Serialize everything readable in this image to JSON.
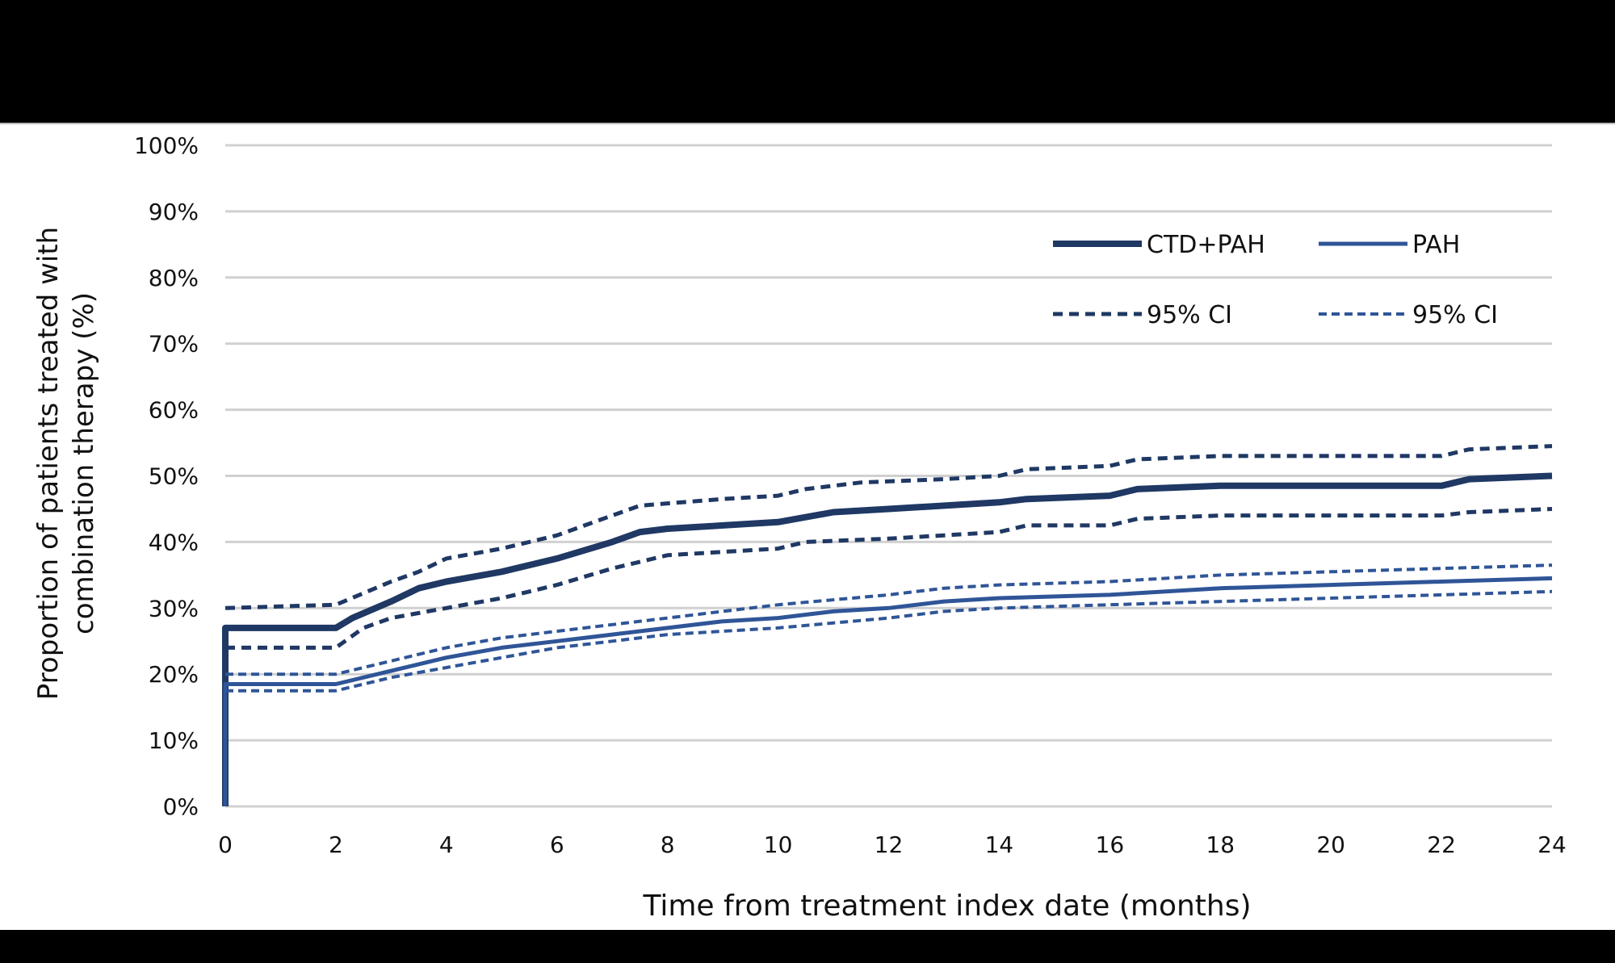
{
  "chart_data": {
    "type": "line",
    "title": "",
    "xlabel": "Time from treatment index date (months)",
    "ylabel": [
      "Proportion of patients treated with",
      "combination therapy (%)"
    ],
    "xlim": [
      0,
      24
    ],
    "ylim": [
      0,
      100
    ],
    "xticks": [
      0,
      2,
      4,
      6,
      8,
      10,
      12,
      14,
      16,
      18,
      20,
      22,
      24
    ],
    "yticks": [
      0,
      10,
      20,
      30,
      40,
      50,
      60,
      70,
      80,
      90,
      100
    ],
    "ytick_format": "%",
    "grid": "horizontal",
    "legend_placement": "top-right",
    "series": [
      {
        "name": "CTD+PAH",
        "color": "#1f3864",
        "style": "solid",
        "width": "thick",
        "points": [
          [
            0,
            0
          ],
          [
            0,
            27
          ],
          [
            2,
            27
          ],
          [
            2.3,
            28.5
          ],
          [
            3,
            31
          ],
          [
            3.5,
            33
          ],
          [
            4,
            34
          ],
          [
            5,
            35.5
          ],
          [
            6,
            37.5
          ],
          [
            7,
            40
          ],
          [
            7.5,
            41.5
          ],
          [
            8,
            42
          ],
          [
            10,
            43
          ],
          [
            11,
            44.5
          ],
          [
            12,
            45
          ],
          [
            14,
            46
          ],
          [
            14.5,
            46.5
          ],
          [
            16,
            47
          ],
          [
            16.5,
            48
          ],
          [
            18,
            48.5
          ],
          [
            22,
            48.5
          ],
          [
            22.5,
            49.5
          ],
          [
            24,
            50
          ]
        ]
      },
      {
        "name": "95% CI",
        "color": "#1f3864",
        "style": "dashed",
        "width": "medium",
        "points": [
          [
            0,
            30
          ],
          [
            2,
            30.5
          ],
          [
            3,
            34
          ],
          [
            3.5,
            35.5
          ],
          [
            4,
            37.5
          ],
          [
            5,
            39
          ],
          [
            6,
            41
          ],
          [
            7,
            44
          ],
          [
            7.5,
            45.5
          ],
          [
            9,
            46.5
          ],
          [
            10,
            47
          ],
          [
            10.5,
            48
          ],
          [
            11.5,
            49
          ],
          [
            13,
            49.5
          ],
          [
            14,
            50
          ],
          [
            14.5,
            51
          ],
          [
            16,
            51.5
          ],
          [
            16.5,
            52.5
          ],
          [
            18,
            53
          ],
          [
            22,
            53
          ],
          [
            22.5,
            54
          ],
          [
            24,
            54.5
          ]
        ]
      },
      {
        "name": "",
        "color": "#1f3864",
        "style": "dashed",
        "width": "medium",
        "points": [
          [
            0,
            24
          ],
          [
            2,
            24
          ],
          [
            2.5,
            27
          ],
          [
            3,
            28.5
          ],
          [
            4,
            30
          ],
          [
            5,
            31.5
          ],
          [
            6,
            33.5
          ],
          [
            7,
            36
          ],
          [
            8,
            38
          ],
          [
            10,
            39
          ],
          [
            10.5,
            40
          ],
          [
            12,
            40.5
          ],
          [
            13,
            41
          ],
          [
            14,
            41.5
          ],
          [
            14.5,
            42.5
          ],
          [
            16,
            42.5
          ],
          [
            16.5,
            43.5
          ],
          [
            18,
            44
          ],
          [
            22,
            44
          ],
          [
            22.5,
            44.5
          ],
          [
            24,
            45
          ]
        ]
      },
      {
        "name": "PAH",
        "color": "#2f5597",
        "style": "solid",
        "width": "medium",
        "points": [
          [
            0,
            0
          ],
          [
            0,
            18.5
          ],
          [
            2,
            18.5
          ],
          [
            3,
            20.5
          ],
          [
            4,
            22.5
          ],
          [
            5,
            24
          ],
          [
            6,
            25
          ],
          [
            7,
            26
          ],
          [
            8,
            27
          ],
          [
            9,
            28
          ],
          [
            10,
            28.5
          ],
          [
            11,
            29.5
          ],
          [
            12,
            30
          ],
          [
            13,
            31
          ],
          [
            14,
            31.5
          ],
          [
            16,
            32
          ],
          [
            18,
            33
          ],
          [
            20,
            33.5
          ],
          [
            22,
            34
          ],
          [
            24,
            34.5
          ]
        ]
      },
      {
        "name": "95% CI",
        "color": "#2f5597",
        "style": "dashed",
        "width": "thin",
        "points": [
          [
            0,
            20
          ],
          [
            2,
            20
          ],
          [
            3,
            22
          ],
          [
            4,
            24
          ],
          [
            5,
            25.5
          ],
          [
            6,
            26.5
          ],
          [
            7,
            27.5
          ],
          [
            8,
            28.5
          ],
          [
            10,
            30.5
          ],
          [
            12,
            32
          ],
          [
            13,
            33
          ],
          [
            14,
            33.5
          ],
          [
            16,
            34
          ],
          [
            18,
            35
          ],
          [
            20,
            35.5
          ],
          [
            22,
            36
          ],
          [
            24,
            36.5
          ]
        ]
      },
      {
        "name": "",
        "color": "#2f5597",
        "style": "dashed",
        "width": "thin",
        "points": [
          [
            0,
            17.5
          ],
          [
            2,
            17.5
          ],
          [
            3,
            19.5
          ],
          [
            4,
            21
          ],
          [
            5,
            22.5
          ],
          [
            6,
            24
          ],
          [
            7,
            25
          ],
          [
            8,
            26
          ],
          [
            10,
            27
          ],
          [
            12,
            28.5
          ],
          [
            13,
            29.5
          ],
          [
            14,
            30
          ],
          [
            16,
            30.5
          ],
          [
            18,
            31
          ],
          [
            20,
            31.5
          ],
          [
            22,
            32
          ],
          [
            24,
            32.5
          ]
        ]
      }
    ],
    "legend": [
      {
        "label": "CTD+PAH",
        "series": 0
      },
      {
        "label": "PAH",
        "series": 3
      },
      {
        "label": "95% CI",
        "series": 1
      },
      {
        "label": "95% CI",
        "series": 4
      }
    ]
  }
}
